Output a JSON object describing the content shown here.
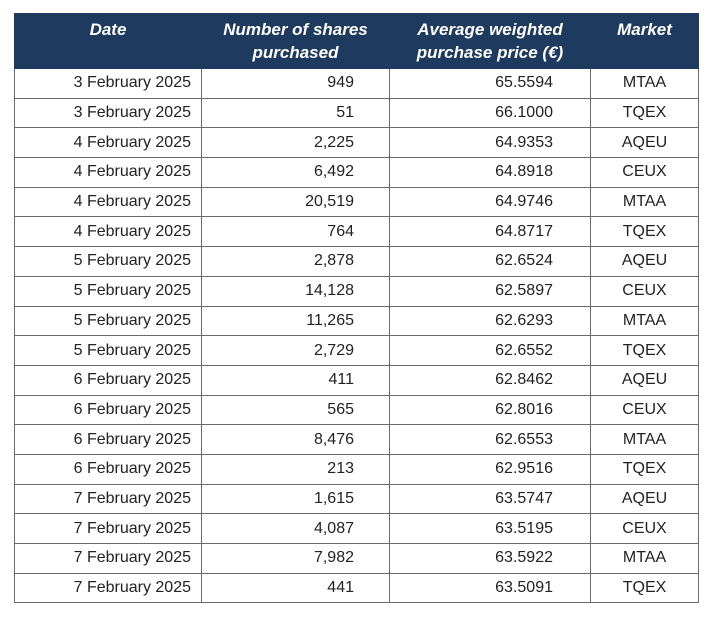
{
  "headers": {
    "date": "Date",
    "shares": "Number of shares purchased",
    "price": "Average weighted purchase price (€)",
    "market": "Market"
  },
  "header_bg": "#1f3a5f",
  "rows": [
    {
      "date": "3 February 2025",
      "shares": "949",
      "price": "65.5594",
      "market": "MTAA"
    },
    {
      "date": "3 February 2025",
      "shares": "51",
      "price": "66.1000",
      "market": "TQEX"
    },
    {
      "date": "4 February 2025",
      "shares": "2,225",
      "price": "64.9353",
      "market": "AQEU"
    },
    {
      "date": "4 February 2025",
      "shares": "6,492",
      "price": "64.8918",
      "market": "CEUX"
    },
    {
      "date": "4 February 2025",
      "shares": "20,519",
      "price": "64.9746",
      "market": "MTAA"
    },
    {
      "date": "4 February 2025",
      "shares": "764",
      "price": "64.8717",
      "market": "TQEX"
    },
    {
      "date": "5 February 2025",
      "shares": "2,878",
      "price": "62.6524",
      "market": "AQEU"
    },
    {
      "date": "5 February 2025",
      "shares": "14,128",
      "price": "62.5897",
      "market": "CEUX"
    },
    {
      "date": "5 February 2025",
      "shares": "11,265",
      "price": "62.6293",
      "market": "MTAA"
    },
    {
      "date": "5 February 2025",
      "shares": "2,729",
      "price": "62.6552",
      "market": "TQEX"
    },
    {
      "date": "6 February 2025",
      "shares": "411",
      "price": "62.8462",
      "market": "AQEU"
    },
    {
      "date": "6 February 2025",
      "shares": "565",
      "price": "62.8016",
      "market": "CEUX"
    },
    {
      "date": "6 February 2025",
      "shares": "8,476",
      "price": "62.6553",
      "market": "MTAA"
    },
    {
      "date": "6 February 2025",
      "shares": "213",
      "price": "62.9516",
      "market": "TQEX"
    },
    {
      "date": "7 February 2025",
      "shares": "1,615",
      "price": "63.5747",
      "market": "AQEU"
    },
    {
      "date": "7 February 2025",
      "shares": "4,087",
      "price": "63.5195",
      "market": "CEUX"
    },
    {
      "date": "7 February 2025",
      "shares": "7,982",
      "price": "63.5922",
      "market": "MTAA"
    },
    {
      "date": "7 February 2025",
      "shares": "441",
      "price": "63.5091",
      "market": "TQEX"
    }
  ]
}
